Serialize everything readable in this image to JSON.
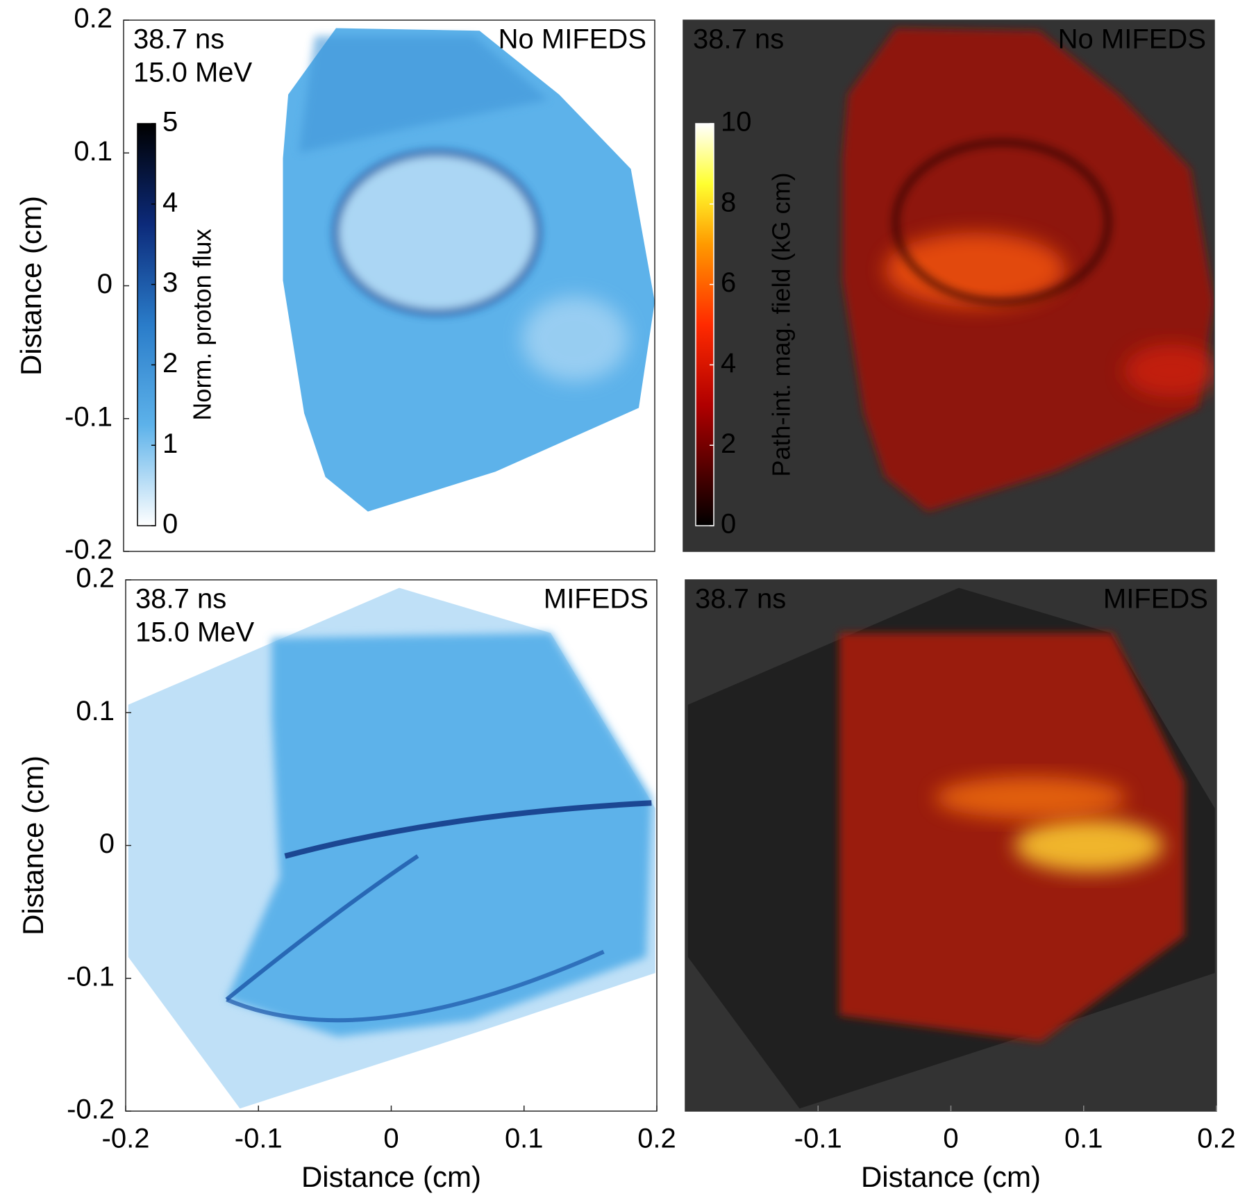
{
  "chart_data": [
    {
      "type": "image",
      "time": "38.7 ns",
      "energy": "15.0 MeV",
      "label": "No MIFEDS",
      "ylabel": "Distance (cm)",
      "xlim": [
        -0.2,
        0.2
      ],
      "ylim": [
        -0.2,
        0.2
      ],
      "yticks": [
        -0.2,
        -0.1,
        0,
        0.1,
        0.2
      ],
      "background": "#ffffff",
      "color": "#5db2ea",
      "colorbar": {
        "label": "Norm. proton flux",
        "lim": [
          0,
          5
        ],
        "ticks": [
          0,
          1,
          2,
          3,
          4,
          5
        ],
        "colormap": "blues"
      }
    },
    {
      "type": "image",
      "time": "38.7 ns",
      "label": "No MIFEDS",
      "xlim": [
        -0.2,
        0.2
      ],
      "ylim": [
        -0.2,
        0.2
      ],
      "background": "#333333",
      "color": "#8e1408",
      "colorbar": {
        "label": "Path-int. mag. field (kG cm)",
        "lim": [
          0,
          10
        ],
        "ticks": [
          0,
          2,
          4,
          6,
          8,
          10
        ],
        "colormap": "hot"
      }
    },
    {
      "type": "image",
      "time": "38.7 ns",
      "energy": "15.0 MeV",
      "label": "MIFEDS",
      "xlabel": "Distance (cm)",
      "ylabel": "Distance (cm)",
      "xlim": [
        -0.2,
        0.2
      ],
      "ylim": [
        -0.2,
        0.2
      ],
      "xticks": [
        -0.2,
        -0.1,
        0,
        0.1,
        0.2
      ],
      "yticks": [
        -0.2,
        -0.1,
        0,
        0.1,
        0.2
      ],
      "background": "#ffffff",
      "color": "#5db2ea"
    },
    {
      "type": "image",
      "time": "38.7 ns",
      "label": "MIFEDS",
      "xlabel": "Distance (cm)",
      "xlim": [
        -0.2,
        0.2
      ],
      "ylim": [
        -0.2,
        0.2
      ],
      "xticks": [
        -0.1,
        0,
        0.1,
        0.2
      ],
      "background": "#333333",
      "color": "#9a1a0a"
    }
  ]
}
